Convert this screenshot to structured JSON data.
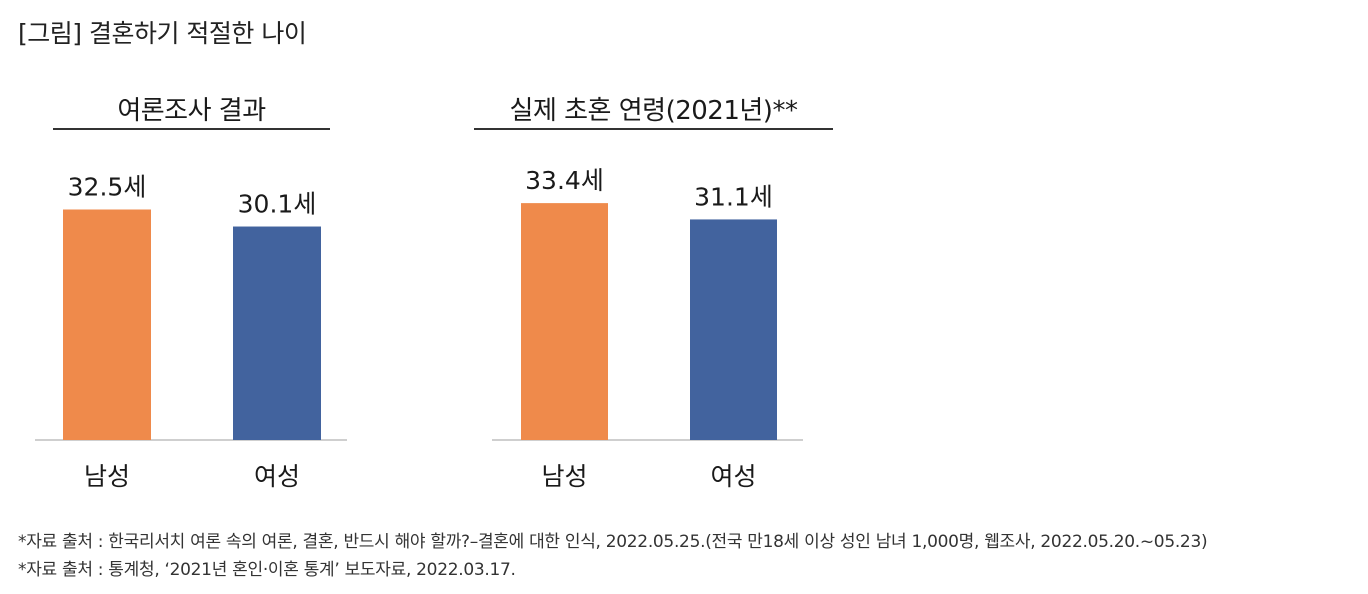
{
  "figure_title": "[그림] 결혼하기 적절한 나이",
  "colors": {
    "male": "#ef8a4b",
    "female": "#42639e",
    "rule": "#333333",
    "baseline": "#bfbfbf"
  },
  "chart_data": [
    {
      "type": "bar",
      "title": "여론조사 결과",
      "categories": [
        "남성",
        "여성"
      ],
      "values": [
        32.5,
        30.1
      ],
      "value_labels": [
        "32.5세",
        "30.1세"
      ],
      "ylim": [
        0,
        36
      ],
      "grid": false,
      "legend": "none"
    },
    {
      "type": "bar",
      "title": "실제 초혼 연령(2021년)**",
      "categories": [
        "남성",
        "여성"
      ],
      "values": [
        33.4,
        31.1
      ],
      "value_labels": [
        "33.4세",
        "31.1세"
      ],
      "ylim": [
        0,
        36
      ],
      "grid": false,
      "legend": "none"
    }
  ],
  "sources": [
    "*자료 출처 : 한국리서치 여론 속의 여론, 결혼, 반드시 해야 할까?–결혼에 대한 인식, 2022.05.25.(전국 만18세 이상 성인 남녀 1,000명, 웹조사, 2022.05.20.~05.23)",
    "*자료 출처 : 통계청, ‘2021년 혼인·이혼 통계’ 보도자료, 2022.03.17."
  ]
}
